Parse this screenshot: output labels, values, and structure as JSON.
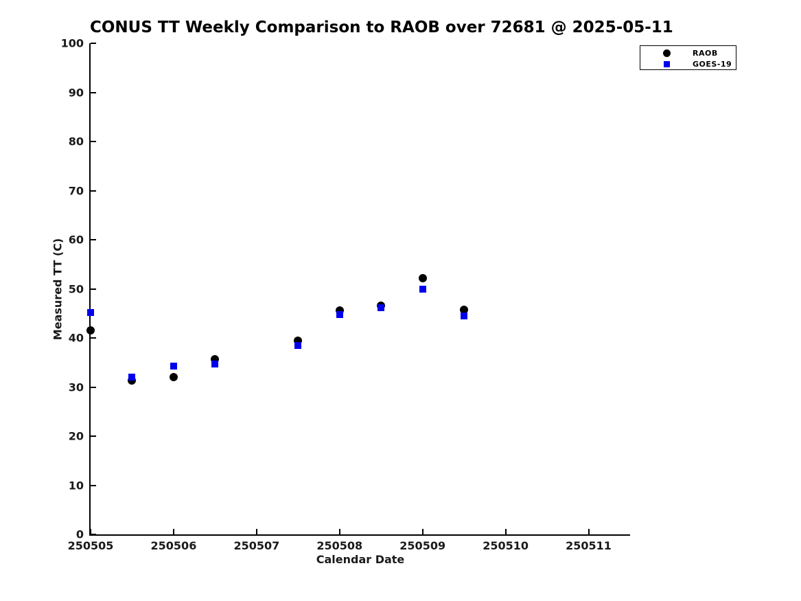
{
  "chart_data": {
    "type": "scatter",
    "title": "CONUS TT Weekly Comparison to RAOB over 72681 @ 2025-05-11",
    "xlabel": "Calendar Date",
    "ylabel": "Measured TT (C)",
    "xlim": [
      250505,
      250511.5
    ],
    "ylim": [
      0,
      100
    ],
    "x_ticks": [
      250505,
      250506,
      250507,
      250508,
      250509,
      250510,
      250511
    ],
    "y_ticks": [
      0,
      10,
      20,
      30,
      40,
      50,
      60,
      70,
      80,
      90,
      100
    ],
    "grid": false,
    "legend_position": "top-right",
    "series": [
      {
        "name": "RAOB",
        "marker": "circle",
        "color": "#000000",
        "x": [
          250505,
          250505.5,
          250506,
          250506.5,
          250507.5,
          250508,
          250508.5,
          250509,
          250509.5
        ],
        "y": [
          41.5,
          31.3,
          32.0,
          35.7,
          39.5,
          45.6,
          46.6,
          52.2,
          45.7
        ]
      },
      {
        "name": "GOES-19",
        "marker": "square",
        "color": "#0000ee",
        "x": [
          250505,
          250505.5,
          250506,
          250506.5,
          250507.5,
          250508,
          250508.5,
          250509,
          250509.5
        ],
        "y": [
          45.2,
          32.0,
          34.2,
          34.7,
          38.4,
          44.8,
          46.2,
          49.9,
          44.5
        ]
      }
    ]
  }
}
